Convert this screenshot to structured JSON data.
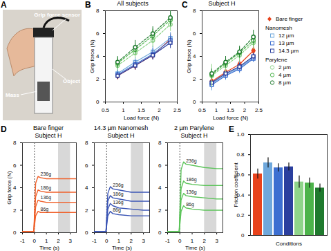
{
  "chart_data": [
    {
      "type": "image",
      "panel": "A",
      "labels": [
        "Grip force sensor",
        "Mass",
        "Object"
      ]
    },
    {
      "type": "line",
      "panel": "B",
      "title": "All subjects",
      "x_label": "Load force (N)",
      "y_label": "Grip force (N)",
      "xlim": [
        0.5,
        2.5
      ],
      "xticks": [
        0.5,
        1,
        1.5,
        2,
        2.5
      ],
      "ylim": [
        0,
        8
      ],
      "yticks": [
        0,
        2,
        4,
        6,
        8
      ],
      "x": [
        0.84,
        1.33,
        1.82,
        2.31
      ],
      "series": [
        {
          "name": "Bare finger",
          "color": "#e8431c",
          "marker": "diamond",
          "line_style": "solid",
          "values": [
            2.3,
            3.2,
            4.1,
            5.5
          ],
          "errors": [
            0.3,
            0.4,
            0.4,
            0.5
          ]
        },
        {
          "name": "12 µm",
          "group": "Nanomesh",
          "color": "#6fa8dc",
          "marker": "square",
          "line_style": "solid",
          "values": [
            2.5,
            3.5,
            4.4,
            5.6
          ],
          "errors": [
            0.4,
            0.4,
            0.5,
            0.5
          ]
        },
        {
          "name": "13 µm",
          "group": "Nanomesh",
          "color": "#3d6fd1",
          "marker": "square",
          "line_style": "solid",
          "values": [
            2.4,
            3.3,
            4.2,
            5.4
          ],
          "errors": [
            0.4,
            0.4,
            0.5,
            0.5
          ]
        },
        {
          "name": "14.3 µm",
          "group": "Nanomesh",
          "color": "#2b3f9e",
          "marker": "square",
          "line_style": "solid",
          "values": [
            2.3,
            3.2,
            4.1,
            5.2
          ],
          "errors": [
            0.3,
            0.4,
            0.4,
            0.5
          ]
        },
        {
          "name": "2 µm",
          "group": "Parylene",
          "color": "#8fd48a",
          "marker": "circle",
          "line_style": "dashed",
          "values": [
            3.2,
            4.3,
            5.4,
            6.8
          ],
          "errors": [
            0.5,
            0.5,
            0.6,
            0.6
          ]
        },
        {
          "name": "4 µm",
          "group": "Parylene",
          "color": "#4cb34a",
          "marker": "circle",
          "line_style": "dashed",
          "values": [
            3.4,
            4.6,
            5.8,
            7.2
          ],
          "errors": [
            0.5,
            0.5,
            0.6,
            0.6
          ]
        },
        {
          "name": "8 µm",
          "group": "Parylene",
          "color": "#1f7a2e",
          "marker": "circle",
          "line_style": "dashed",
          "values": [
            3.5,
            4.8,
            6.0,
            7.4
          ],
          "errors": [
            0.5,
            0.6,
            0.6,
            0.7
          ]
        }
      ]
    },
    {
      "type": "line",
      "panel": "C",
      "title": "Subject H",
      "x_label": "Load force (N)",
      "y_label": "Grip force (N)",
      "xlim": [
        0.5,
        2.5
      ],
      "xticks": [
        0.5,
        1,
        1.5,
        2,
        2.5
      ],
      "ylim": [
        0,
        8
      ],
      "yticks": [
        0,
        2,
        4,
        6,
        8
      ],
      "legend": "right",
      "x": [
        0.84,
        1.33,
        1.82,
        2.31
      ],
      "series": [
        {
          "name": "Bare finger",
          "color": "#e8431c",
          "marker": "diamond",
          "line_style": "solid",
          "values": [
            1.8,
            2.6,
            3.3,
            4.5
          ],
          "errors": [
            0.3,
            0.3,
            0.4,
            0.4
          ]
        },
        {
          "name": "12 µm",
          "group": "Nanomesh",
          "color": "#6fa8dc",
          "marker": "square",
          "line_style": "solid",
          "values": [
            1.6,
            2.4,
            3.0,
            3.9
          ],
          "errors": [
            0.6,
            0.5,
            0.5,
            0.4
          ]
        },
        {
          "name": "13 µm",
          "group": "Nanomesh",
          "color": "#3d6fd1",
          "marker": "square",
          "line_style": "solid",
          "values": [
            1.5,
            2.3,
            2.9,
            3.8
          ],
          "errors": [
            0.3,
            0.3,
            0.3,
            0.3
          ]
        },
        {
          "name": "14.3 µm",
          "group": "Nanomesh",
          "color": "#2b3f9e",
          "marker": "square",
          "line_style": "solid",
          "values": [
            1.7,
            2.5,
            3.1,
            4.0
          ],
          "errors": [
            0.3,
            0.3,
            0.3,
            0.3
          ]
        },
        {
          "name": "2 µm",
          "group": "Parylene",
          "color": "#8fd48a",
          "marker": "circle",
          "line_style": "dashed",
          "values": [
            2.3,
            3.2,
            4.1,
            5.2
          ],
          "errors": [
            1.0,
            0.6,
            0.6,
            0.6
          ]
        },
        {
          "name": "4 µm",
          "group": "Parylene",
          "color": "#4cb34a",
          "marker": "circle",
          "line_style": "dashed",
          "values": [
            2.4,
            3.4,
            4.3,
            5.4
          ],
          "errors": [
            0.4,
            0.4,
            0.5,
            0.5
          ]
        },
        {
          "name": "8 µm",
          "group": "Parylene",
          "color": "#1f7a2e",
          "marker": "circle",
          "line_style": "dashed",
          "values": [
            2.5,
            3.5,
            4.4,
            5.7
          ],
          "errors": [
            0.4,
            0.5,
            0.5,
            0.6
          ]
        }
      ]
    },
    {
      "type": "line",
      "panel": "D",
      "title": "Bare finger",
      "subtitle": "Subject H",
      "x_label": "Time (s)",
      "y_label": "Grip force (N)",
      "color": "#f0602a",
      "xlim": [
        -1,
        3.5
      ],
      "xticks": [
        -1,
        0,
        1,
        2,
        3
      ],
      "ylim": [
        0,
        8
      ],
      "yticks": [
        0,
        2,
        4,
        6,
        8
      ],
      "shaded_region": [
        2,
        3
      ],
      "event_time": 0,
      "x": [
        -1,
        -0.05,
        0.1,
        0.3,
        0.5,
        1,
        2,
        3,
        3.5
      ],
      "series": [
        {
          "name": "236g",
          "values": [
            0.1,
            0.1,
            4.4,
            5.0,
            4.9,
            4.8,
            4.8,
            4.8,
            4.8
          ]
        },
        {
          "name": "186g",
          "values": [
            0.1,
            0.1,
            3.2,
            3.8,
            3.7,
            3.6,
            3.6,
            3.6,
            3.6
          ]
        },
        {
          "name": "136g",
          "values": [
            0.1,
            0.1,
            2.3,
            2.9,
            2.8,
            2.7,
            2.7,
            2.7,
            2.7
          ]
        },
        {
          "name": "86g",
          "values": [
            0.1,
            0.1,
            1.5,
            1.9,
            1.8,
            1.8,
            1.8,
            1.8,
            1.8
          ]
        }
      ]
    },
    {
      "type": "line",
      "panel": "",
      "title": "14.3 µm Nanomesh",
      "subtitle": "Subject H",
      "x_label": "Time (s)",
      "color": "#3b55b5",
      "xlim": [
        -1,
        3.5
      ],
      "xticks": [
        -1,
        0,
        1,
        2,
        3
      ],
      "ylim": [
        0,
        8
      ],
      "yticks": [
        0,
        2,
        4,
        6,
        8
      ],
      "shaded_region": [
        2,
        3
      ],
      "event_time": 0,
      "x": [
        -1,
        -0.05,
        0.1,
        0.3,
        0.5,
        1,
        2,
        3,
        3.5
      ],
      "series": [
        {
          "name": "236g",
          "values": [
            0.1,
            0.1,
            3.5,
            4.1,
            3.9,
            3.8,
            3.6,
            3.6,
            3.6
          ]
        },
        {
          "name": "186g",
          "values": [
            0.1,
            0.1,
            2.8,
            3.3,
            3.1,
            3.0,
            2.8,
            2.8,
            2.8
          ]
        },
        {
          "name": "136g",
          "values": [
            0.1,
            0.1,
            2.1,
            2.6,
            2.4,
            2.2,
            2.1,
            2.0,
            2.0
          ]
        },
        {
          "name": "86g",
          "values": [
            0.1,
            0.1,
            1.5,
            1.9,
            1.7,
            1.6,
            1.5,
            1.5,
            1.5
          ]
        }
      ]
    },
    {
      "type": "line",
      "panel": "",
      "title": "2 µm Parylene",
      "subtitle": "Subject H",
      "x_label": "Time (s)",
      "color": "#5cc45a",
      "xlim": [
        -1,
        3.5
      ],
      "xticks": [
        -1,
        0,
        1,
        2,
        3
      ],
      "ylim": [
        0,
        8
      ],
      "yticks": [
        0,
        2,
        4,
        6,
        8
      ],
      "shaded_region": [
        2,
        3
      ],
      "event_time": 0,
      "x": [
        -1,
        -0.05,
        0.1,
        0.3,
        0.5,
        1,
        2,
        3,
        3.5
      ],
      "series": [
        {
          "name": "236g",
          "values": [
            0.1,
            0.1,
            5.6,
            6.3,
            6.1,
            6.0,
            5.8,
            5.7,
            5.7
          ]
        },
        {
          "name": "186g",
          "values": [
            0.1,
            0.1,
            3.9,
            4.6,
            4.4,
            4.3,
            4.2,
            4.2,
            4.2
          ]
        },
        {
          "name": "136g",
          "values": [
            0.1,
            0.1,
            2.9,
            3.5,
            3.3,
            3.2,
            3.1,
            3.0,
            3.0
          ]
        },
        {
          "name": "86g",
          "values": [
            0.1,
            0.1,
            1.9,
            2.4,
            2.2,
            2.1,
            2.0,
            2.0,
            2.0
          ]
        }
      ]
    },
    {
      "type": "bar",
      "panel": "E",
      "x_label": "Conditions",
      "y_label": "Friction coefficient",
      "categories": [
        null,
        null,
        null,
        null,
        null,
        null,
        null
      ],
      "values": [
        0.61,
        0.72,
        0.67,
        0.68,
        0.53,
        0.52,
        0.47
      ],
      "errors": [
        0.05,
        0.05,
        0.04,
        0.04,
        0.06,
        0.05,
        0.04
      ],
      "colors": [
        "#e8431c",
        "#6fa8dc",
        "#3d6fd1",
        "#2b3f9e",
        "#8fd48a",
        "#4cb34a",
        "#1f7a2e"
      ],
      "ylim": [
        0,
        1
      ],
      "yticks": [
        0,
        0.2,
        0.4,
        0.6,
        0.8,
        {
          "value": 1,
          "label": "1.0"
        }
      ],
      "tick_labels": "y"
    }
  ]
}
